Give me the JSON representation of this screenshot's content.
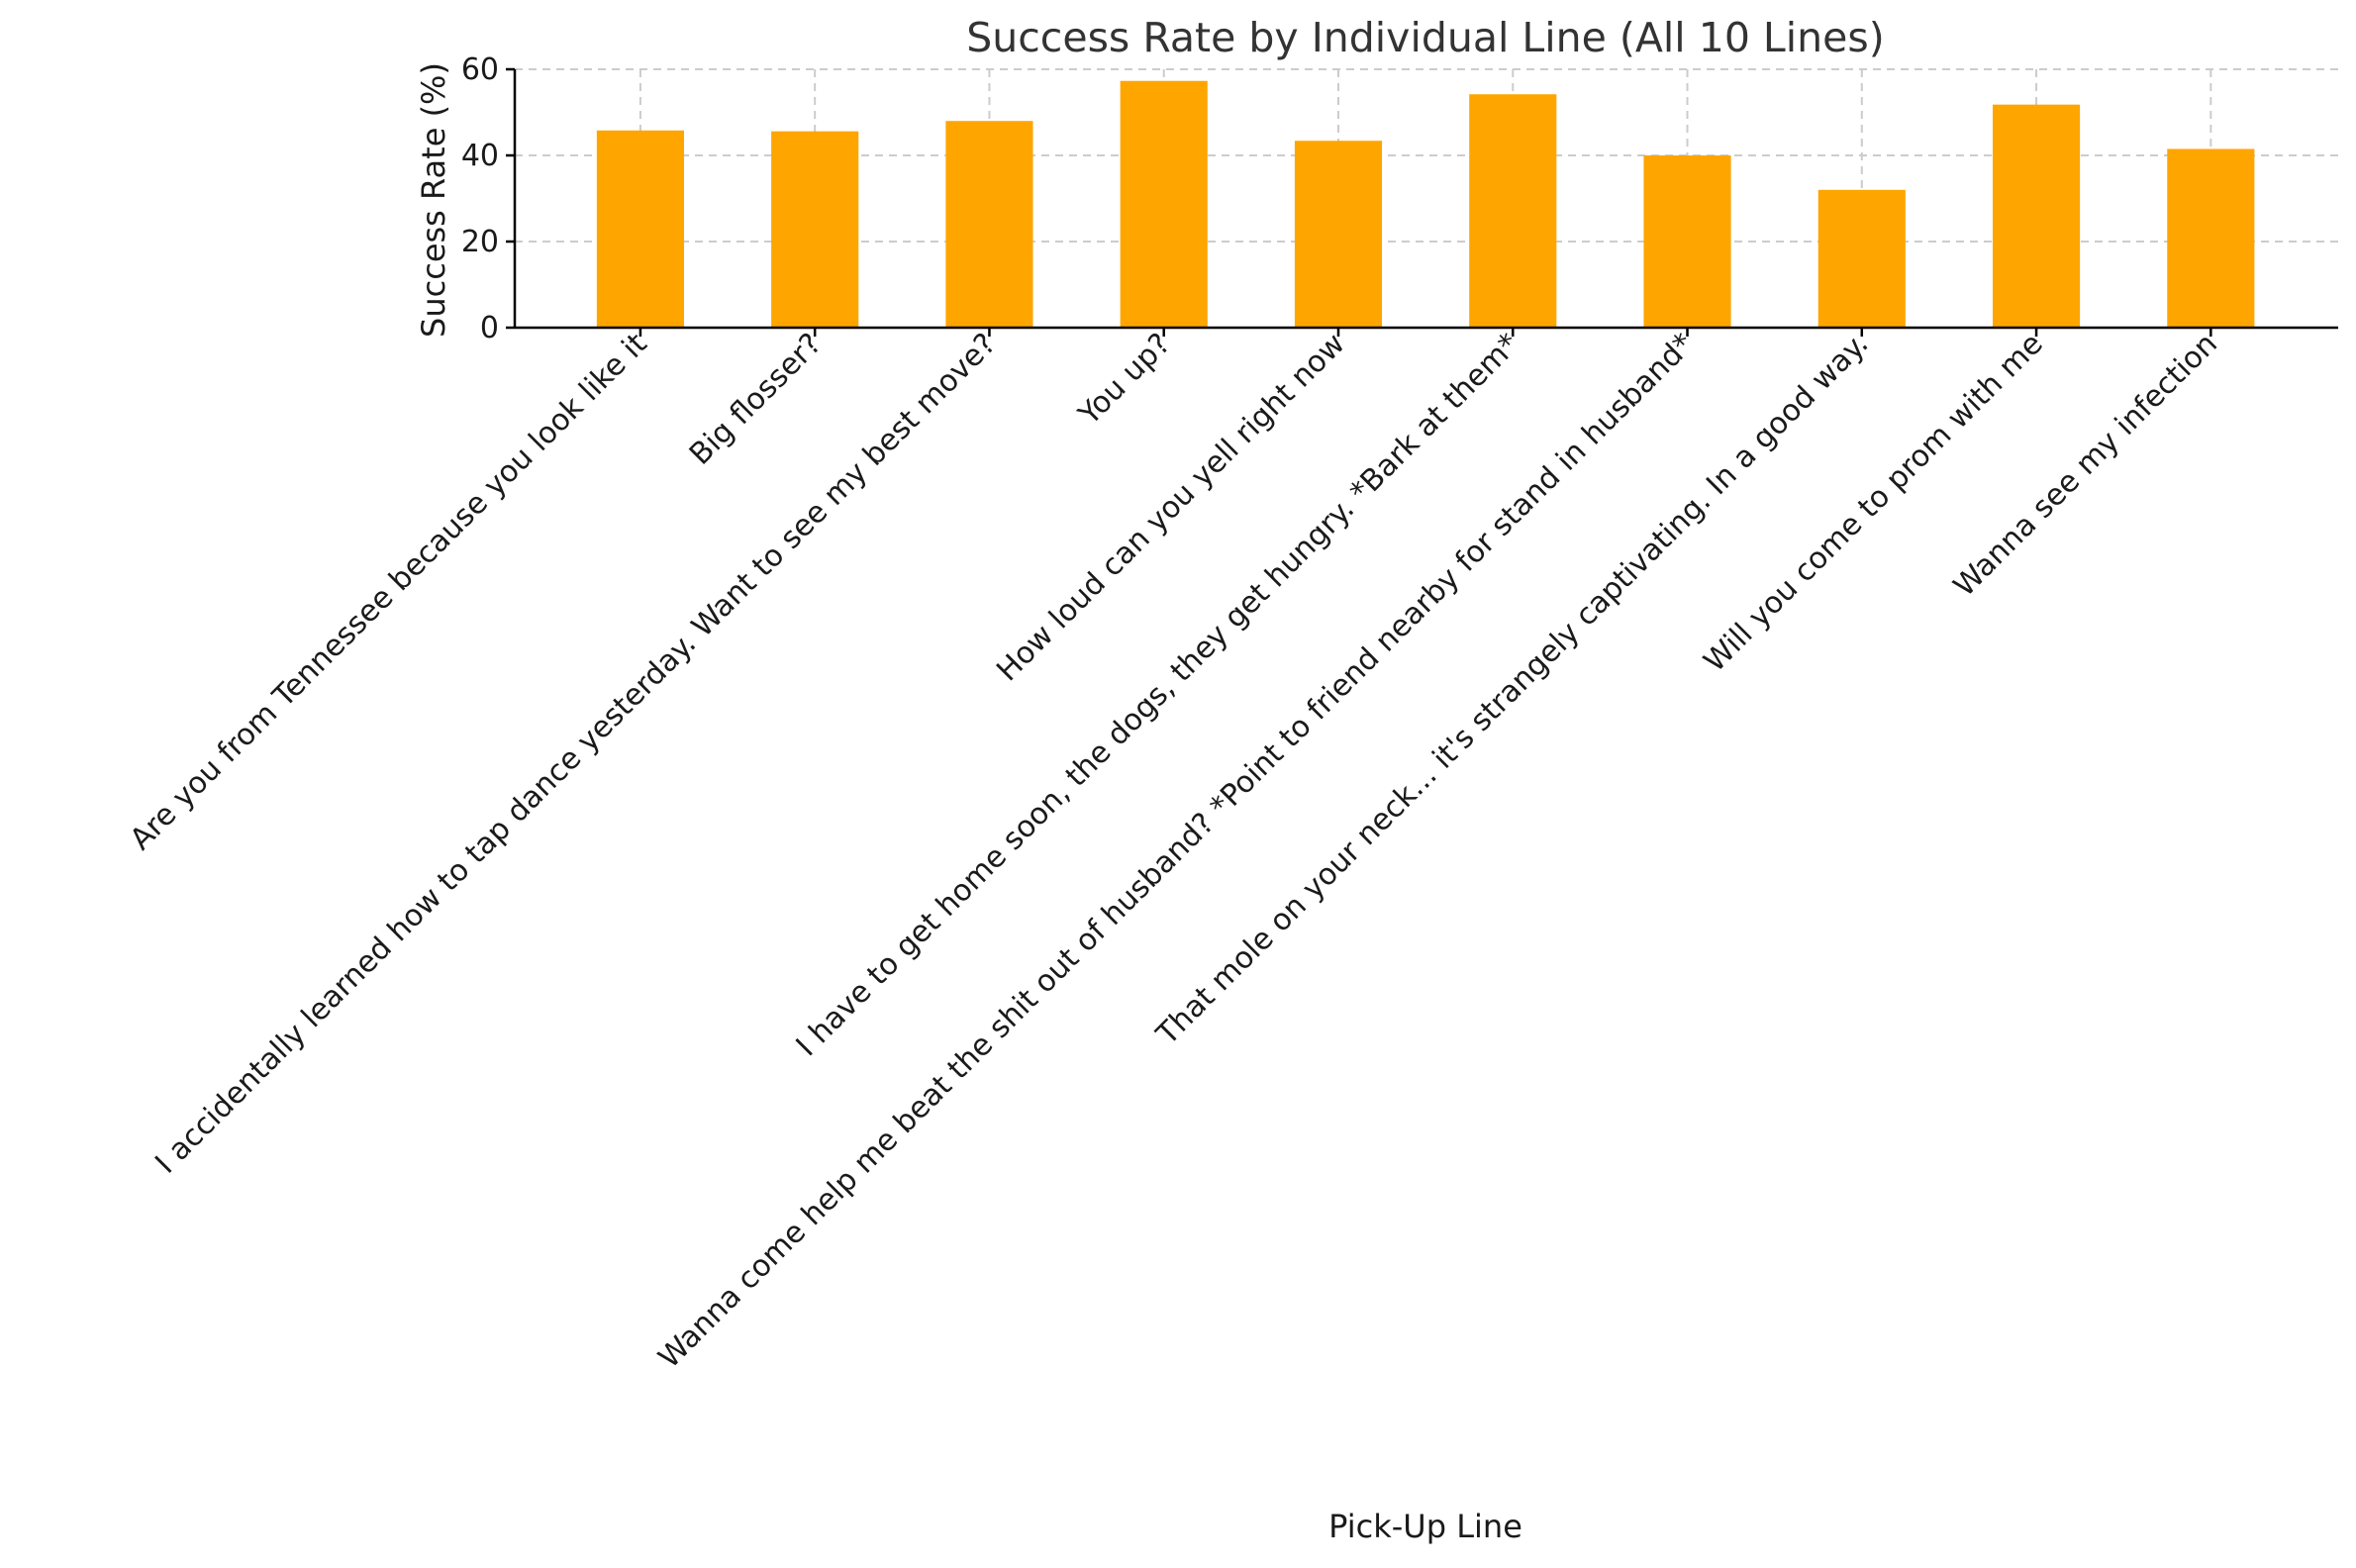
{
  "chart_data": {
    "type": "bar",
    "title": "Success Rate by Individual Line (All 10 Lines)",
    "xlabel": "Pick-Up Line",
    "ylabel": "Success Rate (%)",
    "ylim": [
      0,
      60
    ],
    "yticks": [
      0,
      20,
      40,
      60
    ],
    "grid": true,
    "bar_color": "#FFA500",
    "categories": [
      "Are you from Tennessee because you look like it",
      "Big flosser?",
      "I accidentally learned how to tap dance yesterday. Want to see my best move?",
      "You up?",
      "How loud can you yell right now",
      "I have to get home soon, the dogs, they get hungry. *Bark at them*",
      "Wanna come help me beat the shit out of husband? *Point to friend nearby for stand in husband*",
      "That mole on your neck... it's strangely captivating. In a good way.",
      "Will you come to prom with me",
      "Wanna see my infection"
    ],
    "values": [
      45.8,
      45.6,
      48.0,
      57.3,
      43.4,
      54.2,
      40.0,
      32.0,
      51.8,
      41.5
    ]
  }
}
